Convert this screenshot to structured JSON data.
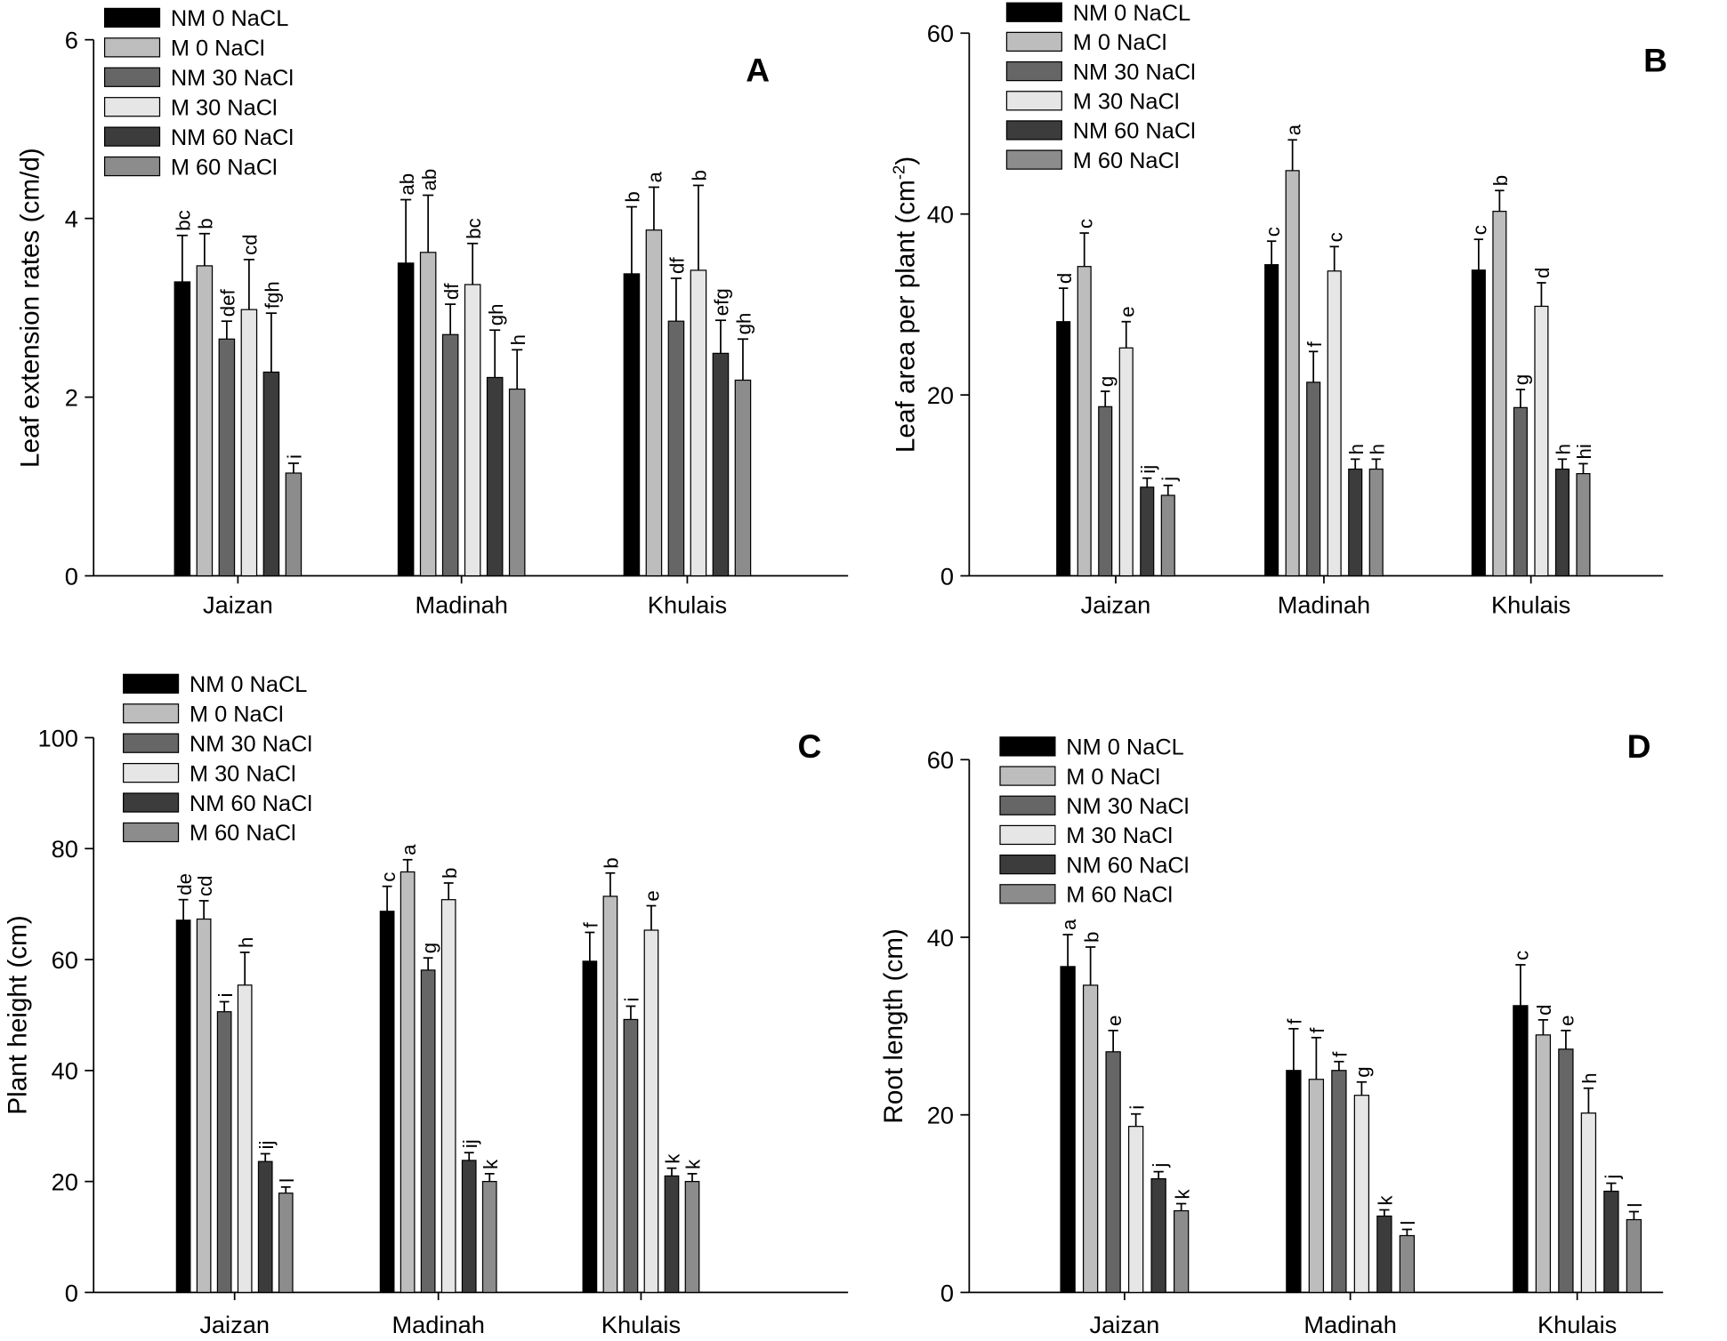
{
  "chart_data": [
    {
      "panel": "A",
      "type": "bar",
      "title": "A",
      "ylabel": "Leaf extension rates (cm/d)",
      "xlabel": "",
      "ylim": [
        0,
        6
      ],
      "yticks": [
        0,
        2,
        4,
        6
      ],
      "grid": false,
      "legend_position": "top-left",
      "categories": [
        "Jaizan",
        "Madinah",
        "Khulais"
      ],
      "series": [
        {
          "name": "NM 0 NaCL",
          "color": "#000000",
          "values": [
            3.29,
            3.5,
            3.38
          ],
          "errors": [
            0.52,
            0.71,
            0.75
          ],
          "letters": [
            "bc",
            "ab",
            "b"
          ]
        },
        {
          "name": "M 0 NaCl",
          "color": "#bdbdbd",
          "values": [
            3.47,
            3.62,
            3.87
          ],
          "errors": [
            0.36,
            0.64,
            0.48
          ],
          "letters": [
            "b",
            "ab",
            "a"
          ]
        },
        {
          "name": "NM 30 NaCl",
          "color": "#666666",
          "values": [
            2.65,
            2.7,
            2.85
          ],
          "errors": [
            0.2,
            0.34,
            0.48
          ],
          "letters": [
            "def",
            "df",
            "df"
          ]
        },
        {
          "name": "M 30 NaCl",
          "color": "#e6e6e6",
          "values": [
            2.98,
            3.26,
            3.42
          ],
          "errors": [
            0.56,
            0.46,
            0.95
          ],
          "letters": [
            "cd",
            "bc",
            "b"
          ]
        },
        {
          "name": "NM 60 NaCl",
          "color": "#3c3c3c",
          "values": [
            2.28,
            2.22,
            2.49
          ],
          "errors": [
            0.66,
            0.53,
            0.37
          ],
          "letters": [
            "fgh",
            "gh",
            "efg"
          ]
        },
        {
          "name": "M 60 NaCl",
          "color": "#8c8c8c",
          "values": [
            1.15,
            2.09,
            2.19
          ],
          "errors": [
            0.11,
            0.44,
            0.46
          ],
          "letters": [
            "i",
            "h",
            "gh"
          ]
        }
      ]
    },
    {
      "panel": "B",
      "type": "bar",
      "title": "B",
      "ylabel_parts": [
        "Leaf area per plant (cm",
        "-2",
        ")"
      ],
      "xlabel": "",
      "ylim": [
        0,
        60
      ],
      "yticks": [
        0,
        20,
        40,
        60
      ],
      "grid": false,
      "legend_position": "top-left",
      "categories": [
        "Jaizan",
        "Madinah",
        "Khulais"
      ],
      "series": [
        {
          "name": "NM 0 NaCL",
          "color": "#000000",
          "values": [
            28.1,
            34.4,
            33.8
          ],
          "errors": [
            3.7,
            2.6,
            3.4
          ],
          "letters": [
            "d",
            "c",
            "c"
          ]
        },
        {
          "name": "M 0 NaCl",
          "color": "#bdbdbd",
          "values": [
            34.2,
            44.8,
            40.3
          ],
          "errors": [
            3.7,
            3.4,
            2.3
          ],
          "letters": [
            "c",
            "a",
            "b"
          ]
        },
        {
          "name": "NM 30 NaCl",
          "color": "#666666",
          "values": [
            18.7,
            21.4,
            18.6
          ],
          "errors": [
            1.7,
            3.4,
            2.0
          ],
          "letters": [
            "g",
            "f",
            "g"
          ]
        },
        {
          "name": "M 30 NaCl",
          "color": "#e6e6e6",
          "values": [
            25.2,
            33.7,
            29.8
          ],
          "errors": [
            2.9,
            2.7,
            2.6
          ],
          "letters": [
            "e",
            "c",
            "d"
          ]
        },
        {
          "name": "NM 60 NaCl",
          "color": "#3c3c3c",
          "values": [
            9.8,
            11.8,
            11.8
          ],
          "errors": [
            1.0,
            1.1,
            1.1
          ],
          "letters": [
            "ij",
            "h",
            "h"
          ]
        },
        {
          "name": "M 60 NaCl",
          "color": "#8c8c8c",
          "values": [
            8.9,
            11.8,
            11.3
          ],
          "errors": [
            1.1,
            1.1,
            1.1
          ],
          "letters": [
            "j",
            "h",
            "hi"
          ]
        }
      ]
    },
    {
      "panel": "C",
      "type": "bar",
      "title": "C",
      "ylabel": "Plant height (cm)",
      "xlabel": "",
      "ylim": [
        0,
        100
      ],
      "yticks": [
        0,
        20,
        40,
        60,
        80,
        100
      ],
      "grid": false,
      "legend_position": "top-left",
      "categories": [
        "Jaizan",
        "Madinah",
        "Khulais"
      ],
      "series": [
        {
          "name": "NM 0 NaCL",
          "color": "#000000",
          "values": [
            67.1,
            68.7,
            59.7
          ],
          "errors": [
            3.7,
            4.5,
            5.2
          ],
          "letters": [
            "de",
            "c",
            "f"
          ]
        },
        {
          "name": "M 0 NaCl",
          "color": "#bdbdbd",
          "values": [
            67.3,
            75.8,
            71.4
          ],
          "errors": [
            3.3,
            2.2,
            4.2
          ],
          "letters": [
            "cd",
            "a",
            "b"
          ]
        },
        {
          "name": "NM 30 NaCl",
          "color": "#666666",
          "values": [
            50.6,
            58.1,
            49.2
          ],
          "errors": [
            1.8,
            2.2,
            2.4
          ],
          "letters": [
            "i",
            "g",
            "i"
          ]
        },
        {
          "name": "M 30 NaCl",
          "color": "#e6e6e6",
          "values": [
            55.4,
            70.8,
            65.3
          ],
          "errors": [
            5.9,
            3.0,
            4.4
          ],
          "letters": [
            "h",
            "b",
            "e"
          ]
        },
        {
          "name": "NM 60 NaCl",
          "color": "#3c3c3c",
          "values": [
            23.6,
            23.8,
            21.0
          ],
          "errors": [
            1.4,
            1.4,
            1.4
          ],
          "letters": [
            "ij",
            "ij",
            "k"
          ]
        },
        {
          "name": "M 60 NaCl",
          "color": "#8c8c8c",
          "values": [
            17.9,
            20.0,
            20.0
          ],
          "errors": [
            1.1,
            1.4,
            1.4
          ],
          "letters": [
            "l",
            "k",
            "k"
          ]
        }
      ]
    },
    {
      "panel": "D",
      "type": "bar",
      "title": "D",
      "ylabel": "Root length (cm)",
      "xlabel": "",
      "ylim": [
        0,
        60
      ],
      "yticks": [
        0,
        20,
        40,
        60
      ],
      "grid": false,
      "legend_position": "top-left",
      "categories": [
        "Jaizan",
        "Madinah",
        "Khulais"
      ],
      "series": [
        {
          "name": "NM 0 NaCL",
          "color": "#000000",
          "values": [
            36.7,
            25.0,
            32.3
          ],
          "errors": [
            3.6,
            4.7,
            4.6
          ],
          "letters": [
            "a",
            "f",
            "c"
          ]
        },
        {
          "name": "M 0 NaCl",
          "color": "#bdbdbd",
          "values": [
            34.6,
            24.0,
            29.0
          ],
          "errors": [
            4.3,
            4.7,
            1.7
          ],
          "letters": [
            "b",
            "f",
            "d"
          ]
        },
        {
          "name": "NM 30 NaCl",
          "color": "#666666",
          "values": [
            27.1,
            25.0,
            27.4
          ],
          "errors": [
            2.4,
            1.0,
            2.1
          ],
          "letters": [
            "e",
            "f",
            "e"
          ]
        },
        {
          "name": "M 30 NaCl",
          "color": "#e6e6e6",
          "values": [
            18.7,
            22.2,
            20.2
          ],
          "errors": [
            1.4,
            1.5,
            2.8
          ],
          "letters": [
            "i",
            "g",
            "h"
          ]
        },
        {
          "name": "NM 60 NaCl",
          "color": "#3c3c3c",
          "values": [
            12.8,
            8.6,
            11.4
          ],
          "errors": [
            0.8,
            0.7,
            0.9
          ],
          "letters": [
            "j",
            "k",
            "j"
          ]
        },
        {
          "name": "M 60 NaCl",
          "color": "#8c8c8c",
          "values": [
            9.2,
            6.4,
            8.2
          ],
          "errors": [
            0.8,
            0.7,
            0.9
          ],
          "letters": [
            "k",
            "l",
            "l"
          ]
        }
      ]
    }
  ]
}
